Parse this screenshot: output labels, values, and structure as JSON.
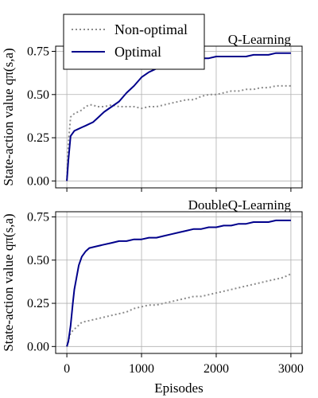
{
  "figure": {
    "ylabel": "State-action value qπ(s,a)",
    "xlabel": "Episodes",
    "legend": {
      "placement": "top-left",
      "entries": [
        {
          "label": "Non-optimal",
          "color": "#8c8c8c",
          "style": "dotted"
        },
        {
          "label": "Optimal",
          "color": "#00008b",
          "style": "solid"
        }
      ]
    }
  },
  "chart_data": [
    {
      "type": "line",
      "title": "Q-Learning",
      "xlabel": "",
      "ylabel": "State-action value qπ(s,a)",
      "xlim": [
        -150,
        3150
      ],
      "ylim": [
        -0.04,
        0.78
      ],
      "xticks": [
        0,
        1000,
        2000,
        3000
      ],
      "yticks": [
        0.0,
        0.25,
        0.5,
        0.75
      ],
      "ytick_labels": [
        "0.00",
        "0.25",
        "0.50",
        "0.75"
      ],
      "xtick_labels": [],
      "grid": true,
      "series": [
        {
          "name": "Non-optimal",
          "color": "#8c8c8c",
          "style": "dotted",
          "x": [
            0,
            20,
            50,
            100,
            150,
            200,
            250,
            300,
            350,
            400,
            500,
            600,
            700,
            800,
            900,
            1000,
            1100,
            1200,
            1300,
            1400,
            1500,
            1600,
            1700,
            1800,
            1900,
            2000,
            2100,
            2200,
            2300,
            2400,
            2500,
            2600,
            2700,
            2800,
            2900,
            3000
          ],
          "y": [
            0.0,
            0.22,
            0.37,
            0.39,
            0.4,
            0.41,
            0.43,
            0.44,
            0.44,
            0.43,
            0.43,
            0.44,
            0.43,
            0.43,
            0.43,
            0.42,
            0.43,
            0.43,
            0.44,
            0.45,
            0.46,
            0.47,
            0.47,
            0.49,
            0.5,
            0.5,
            0.51,
            0.52,
            0.52,
            0.53,
            0.53,
            0.54,
            0.54,
            0.55,
            0.55,
            0.55
          ]
        },
        {
          "name": "Optimal",
          "color": "#00008b",
          "style": "solid",
          "x": [
            0,
            20,
            50,
            100,
            150,
            200,
            250,
            300,
            350,
            400,
            500,
            600,
            700,
            800,
            900,
            1000,
            1100,
            1200,
            1300,
            1400,
            1500,
            1600,
            1700,
            1800,
            1900,
            2000,
            2100,
            2200,
            2300,
            2400,
            2500,
            2600,
            2700,
            2800,
            2900,
            3000
          ],
          "y": [
            0.0,
            0.12,
            0.26,
            0.29,
            0.3,
            0.31,
            0.32,
            0.33,
            0.34,
            0.36,
            0.4,
            0.43,
            0.46,
            0.51,
            0.55,
            0.6,
            0.63,
            0.65,
            0.67,
            0.69,
            0.7,
            0.7,
            0.71,
            0.71,
            0.71,
            0.72,
            0.72,
            0.72,
            0.72,
            0.72,
            0.73,
            0.73,
            0.73,
            0.74,
            0.74,
            0.74
          ]
        }
      ]
    },
    {
      "type": "line",
      "title": "DoubleQ-Learning",
      "xlabel": "Episodes",
      "ylabel": "State-action value qπ(s,a)",
      "xlim": [
        -150,
        3150
      ],
      "ylim": [
        -0.04,
        0.78
      ],
      "xticks": [
        0,
        1000,
        2000,
        3000
      ],
      "xtick_labels": [
        "0",
        "1000",
        "2000",
        "3000"
      ],
      "yticks": [
        0.0,
        0.25,
        0.5,
        0.75
      ],
      "ytick_labels": [
        "0.00",
        "0.25",
        "0.50",
        "0.75"
      ],
      "grid": true,
      "series": [
        {
          "name": "Non-optimal",
          "color": "#8c8c8c",
          "style": "dotted",
          "x": [
            0,
            20,
            50,
            100,
            150,
            200,
            300,
            400,
            500,
            600,
            700,
            800,
            900,
            1000,
            1100,
            1200,
            1300,
            1400,
            1500,
            1600,
            1700,
            1800,
            1900,
            2000,
            2100,
            2200,
            2300,
            2400,
            2500,
            2600,
            2700,
            2800,
            2900,
            3000
          ],
          "y": [
            0.0,
            0.03,
            0.08,
            0.1,
            0.12,
            0.14,
            0.15,
            0.16,
            0.17,
            0.18,
            0.19,
            0.2,
            0.22,
            0.23,
            0.24,
            0.24,
            0.25,
            0.26,
            0.27,
            0.28,
            0.29,
            0.29,
            0.3,
            0.31,
            0.32,
            0.33,
            0.34,
            0.35,
            0.36,
            0.37,
            0.38,
            0.39,
            0.4,
            0.42
          ]
        },
        {
          "name": "Optimal",
          "color": "#00008b",
          "style": "solid",
          "x": [
            0,
            20,
            50,
            80,
            100,
            130,
            160,
            200,
            250,
            300,
            400,
            500,
            600,
            700,
            800,
            900,
            1000,
            1100,
            1200,
            1300,
            1400,
            1500,
            1600,
            1700,
            1800,
            1900,
            2000,
            2100,
            2200,
            2300,
            2400,
            2500,
            2600,
            2700,
            2800,
            2900,
            3000
          ],
          "y": [
            0.0,
            0.03,
            0.12,
            0.25,
            0.33,
            0.4,
            0.47,
            0.52,
            0.55,
            0.57,
            0.58,
            0.59,
            0.6,
            0.61,
            0.61,
            0.62,
            0.62,
            0.63,
            0.63,
            0.64,
            0.65,
            0.66,
            0.67,
            0.68,
            0.68,
            0.69,
            0.69,
            0.7,
            0.7,
            0.71,
            0.71,
            0.72,
            0.72,
            0.72,
            0.73,
            0.73,
            0.73
          ]
        }
      ]
    }
  ]
}
